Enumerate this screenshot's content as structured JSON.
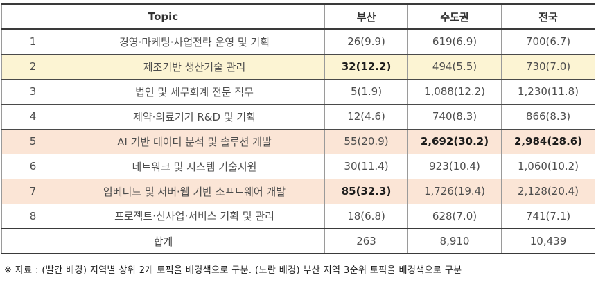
{
  "colors": {
    "yellow": "#fcf4d3",
    "pink": "#fbe5d6"
  },
  "table": {
    "headers": {
      "topic": "Topic",
      "busan": "부산",
      "metro": "수도권",
      "national": "전국"
    },
    "rows": [
      {
        "no": "1",
        "topic": "경영·마케팅·사업전략 운영 및 기획",
        "busan": "26(9.9)",
        "metro": "619(6.9)",
        "national": "700(6.7)",
        "row_class": "",
        "busan_class": "",
        "metro_class": "",
        "national_class": ""
      },
      {
        "no": "2",
        "topic": "제조기반 생산기술 관리",
        "busan": "32(12.2)",
        "metro": "494(5.5)",
        "national": "730(7.0)",
        "row_class": "hl-yellow",
        "busan_class": "b",
        "metro_class": "",
        "national_class": ""
      },
      {
        "no": "3",
        "topic": "법인 및 세무회계 전문 직무",
        "busan": "5(1.9)",
        "metro": "1,088(12.2)",
        "national": "1,230(11.8)",
        "row_class": "",
        "busan_class": "",
        "metro_class": "",
        "national_class": ""
      },
      {
        "no": "4",
        "topic": "제약·의료기기 R&D 및 기획",
        "busan": "12(4.6)",
        "metro": "740(8.3)",
        "national": "866(8.3)",
        "row_class": "",
        "busan_class": "",
        "metro_class": "",
        "national_class": ""
      },
      {
        "no": "5",
        "topic": "AI 기반 데이터 분석 및 솔루션 개발",
        "busan": "55(20.9)",
        "metro": "2,692(30.2)",
        "national": "2,984(28.6)",
        "row_class": "hl-pink",
        "busan_class": "",
        "metro_class": "b",
        "national_class": "b"
      },
      {
        "no": "6",
        "topic": "네트워크 및 시스템 기술지원",
        "busan": "30(11.4)",
        "metro": "923(10.4)",
        "national": "1,060(10.2)",
        "row_class": "",
        "busan_class": "",
        "metro_class": "",
        "national_class": ""
      },
      {
        "no": "7",
        "topic": "임베디드 및 서버·웹 기반 소프트웨어 개발",
        "busan": "85(32.3)",
        "metro": "1,726(19.4)",
        "national": "2,128(20.4)",
        "row_class": "hl-pink",
        "busan_class": "b",
        "metro_class": "",
        "national_class": ""
      },
      {
        "no": "8",
        "topic": "프로젝트·신사업·서비스 기획 및 관리",
        "busan": "18(6.8)",
        "metro": "628(7.0)",
        "national": "741(7.1)",
        "row_class": "",
        "busan_class": "",
        "metro_class": "",
        "national_class": ""
      }
    ],
    "total": {
      "label": "합계",
      "busan": "263",
      "metro": "8,910",
      "national": "10,439"
    }
  },
  "footnote": "※ 자료 : (빨간 배경) 지역별 상위 2개 토픽을 배경색으로 구분. (노란 배경) 부산 지역 3순위 토픽을 배경색으로 구분"
}
